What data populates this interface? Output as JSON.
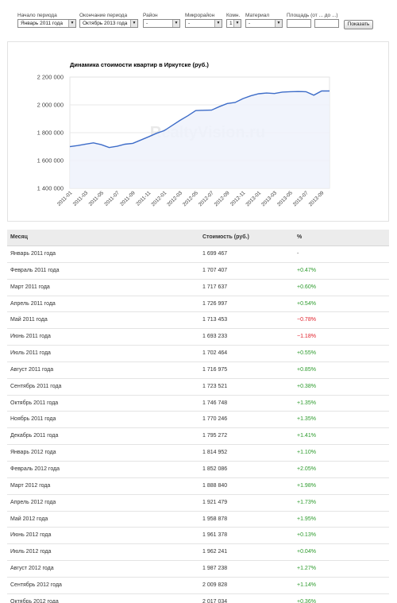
{
  "filters": {
    "start": {
      "label": "Начало периода",
      "value": "Январь 2011 года"
    },
    "end": {
      "label": "Окончание периода",
      "value": "Октябрь 2013 года"
    },
    "district": {
      "label": "Район",
      "value": "-"
    },
    "microdistrict": {
      "label": "Микрорайон",
      "value": "-"
    },
    "rooms": {
      "label": "Комн.",
      "value": "1"
    },
    "material": {
      "label": "Материал",
      "value": "-"
    },
    "area": {
      "label": "Площадь (от ... до ...)",
      "from": "",
      "to": ""
    },
    "show_button": "Показать"
  },
  "chart_data": {
    "type": "area",
    "title": "Динамика стоимости квартир в Иркутске (руб.)",
    "watermark": "RealtyVision.ru",
    "ylim": [
      1400000,
      2200000
    ],
    "yticks": [
      "1 400 000",
      "1 600 000",
      "1 800 000",
      "2 000 000",
      "2 200 000"
    ],
    "xticks": [
      "2011-01",
      "2011-03",
      "2011-05",
      "2011-07",
      "2011-09",
      "2011-11",
      "2012-01",
      "2012-03",
      "2012-05",
      "2012-07",
      "2012-09",
      "2012-11",
      "2013-01",
      "2013-03",
      "2013-05",
      "2013-07",
      "2013-09"
    ],
    "grid": true,
    "x": [
      "2011-01",
      "2011-02",
      "2011-03",
      "2011-04",
      "2011-05",
      "2011-06",
      "2011-07",
      "2011-08",
      "2011-09",
      "2011-10",
      "2011-11",
      "2011-12",
      "2012-01",
      "2012-02",
      "2012-03",
      "2012-04",
      "2012-05",
      "2012-06",
      "2012-07",
      "2012-08",
      "2012-09",
      "2012-10",
      "2012-11",
      "2012-12",
      "2013-01",
      "2013-02",
      "2013-03",
      "2013-04",
      "2013-05",
      "2013-06",
      "2013-07",
      "2013-08",
      "2013-09",
      "2013-10"
    ],
    "values": [
      1699467,
      1707407,
      1717637,
      1726997,
      1713453,
      1693233,
      1702464,
      1716975,
      1723521,
      1746748,
      1770246,
      1795272,
      1814952,
      1852086,
      1888840,
      1921479,
      1958878,
      1961378,
      1962241,
      1987238,
      2009828,
      2017000,
      2045000,
      2065000,
      2080000,
      2085000,
      2082000,
      2092000,
      2095000,
      2096000,
      2095000,
      2070000,
      2100000,
      2100000
    ],
    "colors": {
      "line": "#3d6cc8",
      "fill": "#eef2fb",
      "grid": "#e3e3e3"
    }
  },
  "table": {
    "headers": {
      "month": "Месяц",
      "cost": "Стоимость (руб.)",
      "pct": "%"
    },
    "rows": [
      {
        "month": "Январь 2011 года",
        "cost": "1 699 467",
        "pct": "-"
      },
      {
        "month": "Февраль 2011 года",
        "cost": "1 707 407",
        "pct": "+0.47%"
      },
      {
        "month": "Март 2011 года",
        "cost": "1 717 637",
        "pct": "+0.60%"
      },
      {
        "month": "Апрель 2011 года",
        "cost": "1 726 997",
        "pct": "+0.54%"
      },
      {
        "month": "Май 2011 года",
        "cost": "1 713 453",
        "pct": "−0.78%"
      },
      {
        "month": "Июнь 2011 года",
        "cost": "1 693 233",
        "pct": "−1.18%"
      },
      {
        "month": "Июль 2011 года",
        "cost": "1 702 464",
        "pct": "+0.55%"
      },
      {
        "month": "Август 2011 года",
        "cost": "1 716 975",
        "pct": "+0.85%"
      },
      {
        "month": "Сентябрь 2011 года",
        "cost": "1 723 521",
        "pct": "+0.38%"
      },
      {
        "month": "Октябрь 2011 года",
        "cost": "1 746 748",
        "pct": "+1.35%"
      },
      {
        "month": "Ноябрь 2011 года",
        "cost": "1 770 246",
        "pct": "+1.35%"
      },
      {
        "month": "Декабрь 2011 года",
        "cost": "1 795 272",
        "pct": "+1.41%"
      },
      {
        "month": "Январь 2012 года",
        "cost": "1 814 952",
        "pct": "+1.10%"
      },
      {
        "month": "Февраль 2012 года",
        "cost": "1 852 086",
        "pct": "+2.05%"
      },
      {
        "month": "Март 2012 года",
        "cost": "1 888 840",
        "pct": "+1.98%"
      },
      {
        "month": "Апрель 2012 года",
        "cost": "1 921 479",
        "pct": "+1.73%"
      },
      {
        "month": "Май 2012 года",
        "cost": "1 958 878",
        "pct": "+1.95%"
      },
      {
        "month": "Июнь 2012 года",
        "cost": "1 961 378",
        "pct": "+0.13%"
      },
      {
        "month": "Июль 2012 года",
        "cost": "1 962 241",
        "pct": "+0.04%"
      },
      {
        "month": "Август 2012 года",
        "cost": "1 987 238",
        "pct": "+1.27%"
      },
      {
        "month": "Сентябрь 2012 года",
        "cost": "2 009 828",
        "pct": "+1.14%"
      },
      {
        "month": "Октябрь 2012 года",
        "cost": "2 017 034",
        "pct": "+0.36%"
      }
    ]
  }
}
